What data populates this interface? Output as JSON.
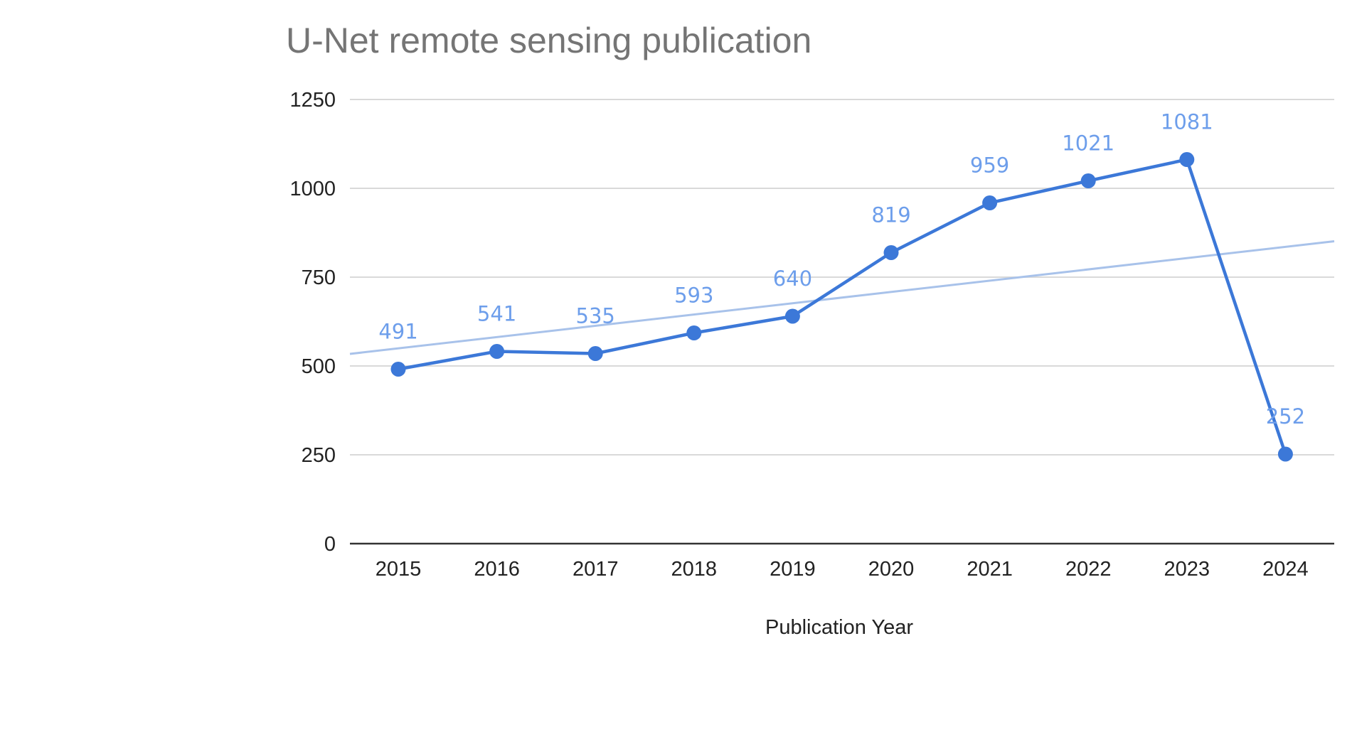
{
  "chart_data": {
    "type": "line",
    "title": "U-Net remote sensing publication",
    "xlabel": "Publication Year",
    "ylabel": "",
    "categories": [
      "2015",
      "2016",
      "2017",
      "2018",
      "2019",
      "2020",
      "2021",
      "2022",
      "2023",
      "2024"
    ],
    "series": [
      {
        "values": [
          491,
          541,
          535,
          593,
          640,
          819,
          959,
          1021,
          1081,
          252
        ],
        "color": "#3c78d8",
        "data_labels": true
      }
    ],
    "trendline": {
      "type": "linear",
      "color": "#a8c2ea",
      "start_value": 534,
      "end_value": 851
    },
    "ylim": [
      0,
      1250
    ],
    "yticks": [
      0,
      250,
      500,
      750,
      1000,
      1250
    ],
    "grid": true,
    "legend": "none",
    "label_color": "#6d9eeb"
  }
}
